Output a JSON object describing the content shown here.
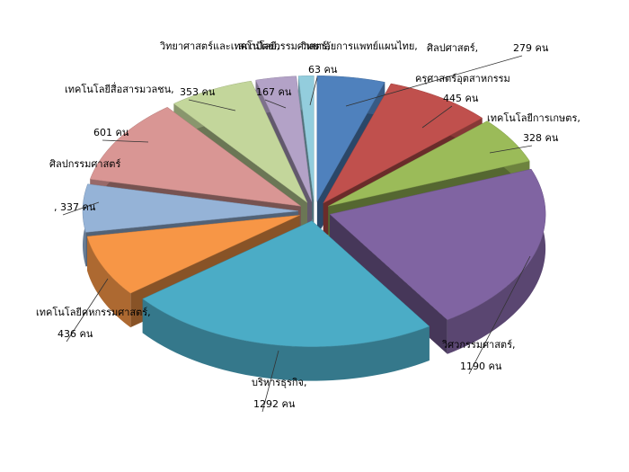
{
  "chart_data": {
    "type": "pie",
    "categories": [
      "ศิลปศาสตร์,",
      "ครุศาสตร์อุตสาหกรรม",
      "เทคโนโลยีการเกษตร,",
      "วิศวกรรมศาสตร์,",
      "บริหารธุรกิจ,",
      "เทคโนโลยีคหกรรมศาสตร์,",
      "ศิลปกรรมศาสตร์",
      "เทคโนโลยีสื่อสารมวลชน,",
      "วิทยาศาสตร์และเทคโนโลยี,",
      "สถาปัตยกรรมศาสตร์,",
      "วิทยาลัยการแพทย์แผนไทย,"
    ],
    "values": [
      279,
      445,
      328,
      1190,
      1292,
      436,
      337,
      601,
      353,
      167,
      63
    ],
    "value_labels": [
      "279 คน",
      "445 คน",
      "328 คน",
      "1190 คน",
      "1292 คน",
      "436 คน",
      ", 337 คน",
      "601 คน",
      "353 คน",
      "167 คน",
      "63 คน"
    ],
    "colors": [
      "#4f81bd",
      "#c0504d",
      "#9bbb59",
      "#8064a2",
      "#4bacc6",
      "#f79646",
      "#95b3d7",
      "#d99694",
      "#c3d69b",
      "#b3a2c7",
      "#93cddd"
    ]
  }
}
